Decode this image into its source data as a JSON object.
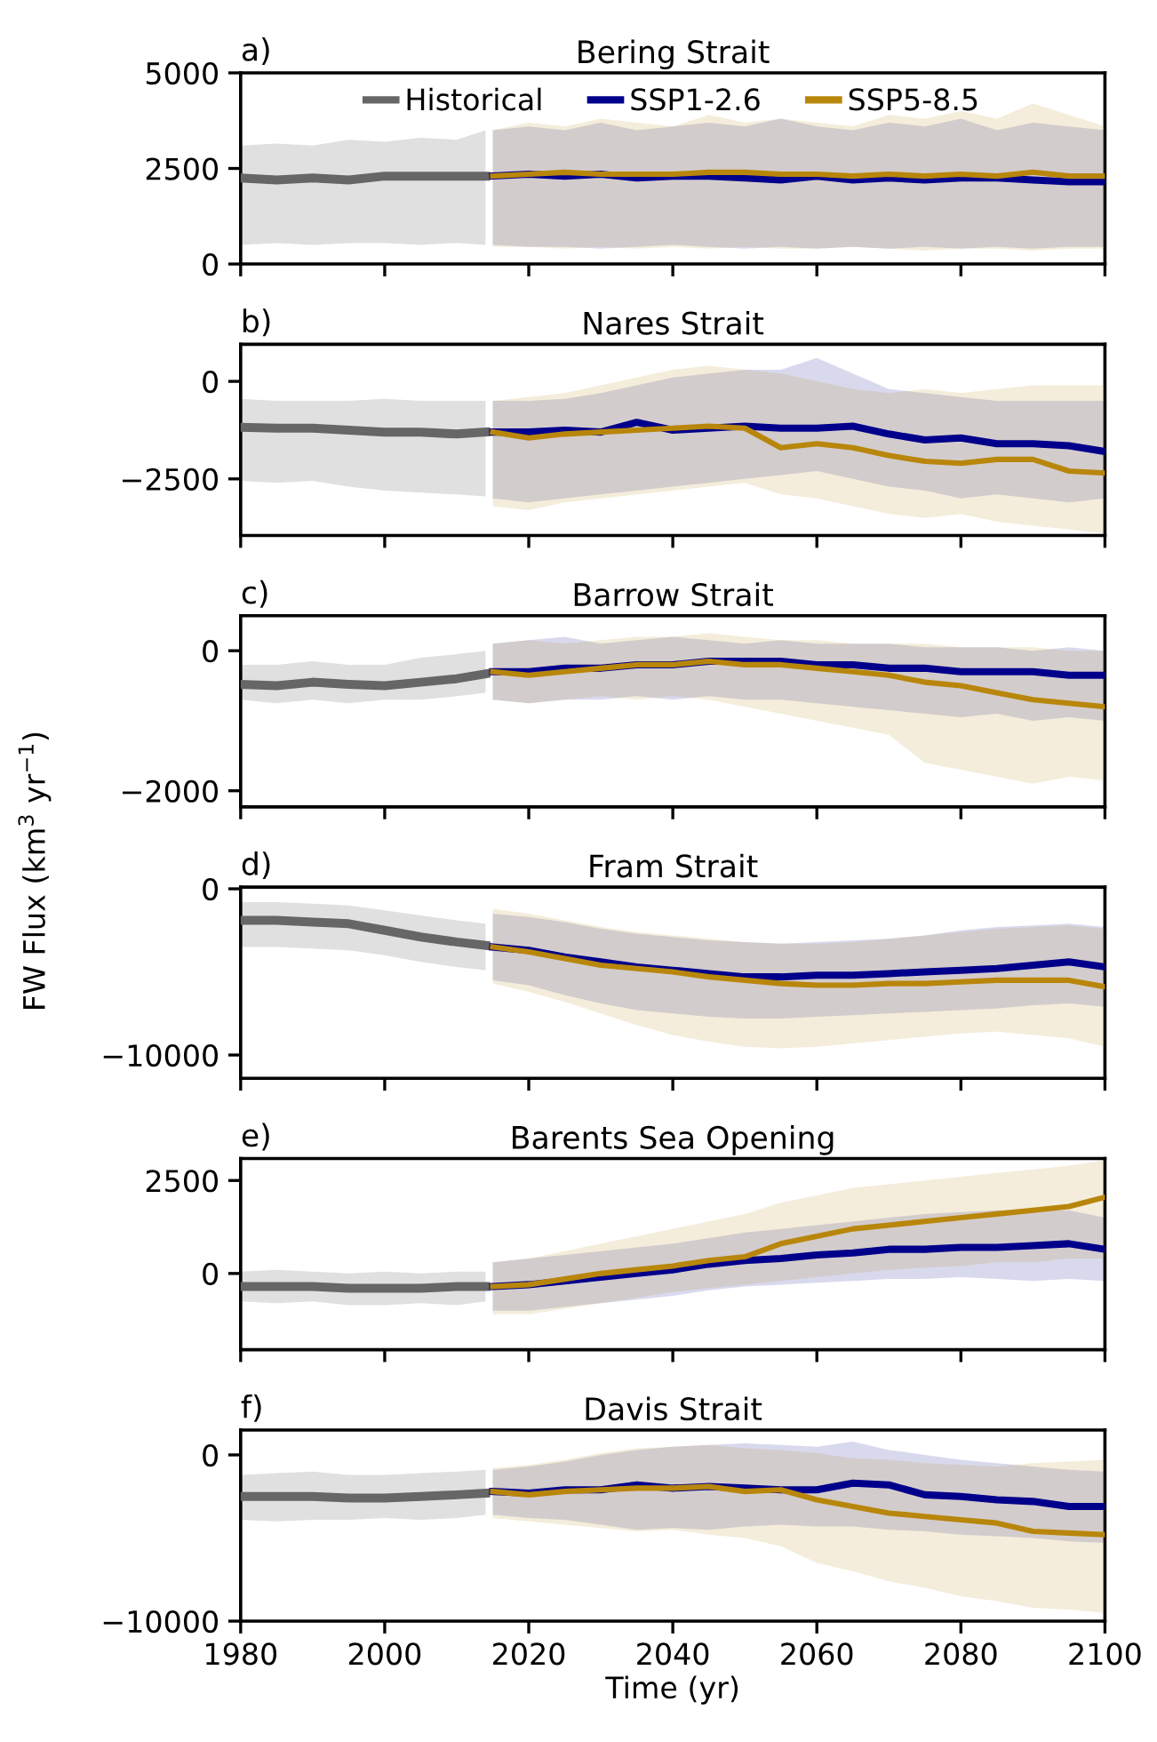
{
  "chart_data": [
    {
      "type": "line",
      "title": "Bering Strait",
      "annotations": [
        "a)"
      ],
      "xlim": [
        1980,
        2100
      ],
      "xticks": [
        1980,
        2000,
        2020,
        2040,
        2060,
        2080,
        2100
      ],
      "ylim": [
        0,
        5000
      ],
      "yticks": [
        0,
        2500,
        5000
      ],
      "tick_labels": "y",
      "legend": "top",
      "grid": false,
      "marker": "none",
      "line_style": "solid",
      "series": [
        {
          "name": "Historical",
          "color": "#666666",
          "x": [
            1980,
            1985,
            1990,
            1995,
            2000,
            2005,
            2010,
            2014
          ],
          "values": [
            2250,
            2200,
            2250,
            2200,
            2300,
            2300,
            2300,
            2300
          ],
          "lower": [
            500,
            550,
            500,
            550,
            550,
            500,
            550,
            500
          ],
          "upper": [
            3100,
            3150,
            3100,
            3250,
            3200,
            3300,
            3250,
            3500
          ]
        },
        {
          "name": "SSP1-2.6",
          "color": "#00008b",
          "x": [
            2015,
            2020,
            2025,
            2030,
            2035,
            2040,
            2045,
            2050,
            2055,
            2060,
            2065,
            2070,
            2075,
            2080,
            2085,
            2090,
            2095,
            2100
          ],
          "values": [
            2300,
            2350,
            2300,
            2350,
            2250,
            2300,
            2300,
            2250,
            2200,
            2300,
            2200,
            2250,
            2200,
            2250,
            2250,
            2200,
            2150,
            2150
          ],
          "lower": [
            500,
            450,
            450,
            400,
            450,
            500,
            450,
            400,
            450,
            400,
            450,
            400,
            450,
            400,
            450,
            400,
            450,
            450
          ],
          "upper": [
            3500,
            3600,
            3500,
            3700,
            3500,
            3600,
            3700,
            3600,
            3800,
            3600,
            3500,
            3700,
            3600,
            3800,
            3500,
            3700,
            3600,
            3500
          ]
        },
        {
          "name": "SSP5-8.5",
          "color": "#b8860b",
          "x": [
            2015,
            2020,
            2025,
            2030,
            2035,
            2040,
            2045,
            2050,
            2055,
            2060,
            2065,
            2070,
            2075,
            2080,
            2085,
            2090,
            2095,
            2100
          ],
          "values": [
            2300,
            2350,
            2400,
            2350,
            2350,
            2350,
            2400,
            2400,
            2350,
            2350,
            2300,
            2350,
            2300,
            2350,
            2300,
            2400,
            2300,
            2300
          ],
          "lower": [
            450,
            450,
            400,
            450,
            400,
            450,
            400,
            450,
            400,
            400,
            450,
            400,
            350,
            400,
            400,
            350,
            400,
            400
          ],
          "upper": [
            3500,
            3700,
            3600,
            3800,
            3700,
            3600,
            3900,
            3700,
            3800,
            3700,
            3600,
            3900,
            3800,
            4000,
            3800,
            4200,
            3900,
            3600
          ]
        }
      ]
    },
    {
      "type": "line",
      "title": "Nares Strait",
      "annotations": [
        "b)"
      ],
      "xlim": [
        1980,
        2100
      ],
      "xticks": [
        1980,
        2000,
        2020,
        2040,
        2060,
        2080,
        2100
      ],
      "ylim": [
        -3950,
        950
      ],
      "yticks": [
        -2500,
        0
      ],
      "tick_labels": "y",
      "grid": false,
      "marker": "none",
      "line_style": "solid",
      "series": [
        {
          "color": "#666666",
          "x": [
            1980,
            1985,
            1990,
            1995,
            2000,
            2005,
            2010,
            2014
          ],
          "values": [
            -1180,
            -1200,
            -1200,
            -1250,
            -1300,
            -1300,
            -1350,
            -1300
          ],
          "lower": [
            -2550,
            -2600,
            -2550,
            -2700,
            -2800,
            -2850,
            -2900,
            -2950
          ],
          "upper": [
            -450,
            -500,
            -500,
            -500,
            -450,
            -500,
            -500,
            -500
          ]
        },
        {
          "color": "#00008b",
          "x": [
            2015,
            2020,
            2025,
            2030,
            2035,
            2040,
            2045,
            2050,
            2055,
            2060,
            2065,
            2070,
            2075,
            2080,
            2085,
            2090,
            2095,
            2100
          ],
          "values": [
            -1300,
            -1300,
            -1250,
            -1300,
            -1050,
            -1250,
            -1200,
            -1150,
            -1200,
            -1200,
            -1150,
            -1350,
            -1500,
            -1450,
            -1600,
            -1600,
            -1650,
            -1800
          ],
          "lower": [
            -3000,
            -3100,
            -3000,
            -2900,
            -2800,
            -2700,
            -2600,
            -2500,
            -2400,
            -2300,
            -2500,
            -2700,
            -2800,
            -3000,
            -2900,
            -3000,
            -3100,
            -3000
          ],
          "upper": [
            -500,
            -500,
            -450,
            -300,
            -100,
            100,
            200,
            300,
            300,
            600,
            200,
            -200,
            -300,
            -400,
            -500,
            -500,
            -500,
            -500
          ]
        },
        {
          "color": "#b8860b",
          "x": [
            2015,
            2020,
            2025,
            2030,
            2035,
            2040,
            2045,
            2050,
            2055,
            2060,
            2065,
            2070,
            2075,
            2080,
            2085,
            2090,
            2095,
            2100
          ],
          "values": [
            -1300,
            -1450,
            -1350,
            -1300,
            -1250,
            -1200,
            -1150,
            -1200,
            -1700,
            -1600,
            -1700,
            -1900,
            -2050,
            -2100,
            -2000,
            -2000,
            -2300,
            -2350
          ],
          "lower": [
            -3200,
            -3300,
            -3100,
            -3000,
            -2900,
            -2800,
            -2700,
            -2600,
            -2900,
            -3000,
            -3200,
            -3400,
            -3500,
            -3400,
            -3600,
            -3700,
            -3800,
            -3900
          ],
          "upper": [
            -500,
            -400,
            -300,
            -100,
            100,
            300,
            400,
            300,
            200,
            0,
            -200,
            -300,
            -200,
            -300,
            -200,
            -100,
            -100,
            -100
          ]
        }
      ]
    },
    {
      "type": "line",
      "title": "Barrow Strait",
      "annotations": [
        "c)"
      ],
      "ylabel": "FW Flux (km$^{3}$ yr$^{−1}$)",
      "xlim": [
        1980,
        2100
      ],
      "xticks": [
        1980,
        2000,
        2020,
        2040,
        2060,
        2080,
        2100
      ],
      "ylim": [
        -2230,
        500
      ],
      "yticks": [
        -2000,
        0
      ],
      "tick_labels": "y",
      "grid": false,
      "marker": "none",
      "line_style": "solid",
      "series": [
        {
          "color": "#666666",
          "x": [
            1980,
            1985,
            1990,
            1995,
            2000,
            2005,
            2010,
            2014
          ],
          "values": [
            -480,
            -500,
            -450,
            -480,
            -500,
            -450,
            -400,
            -330
          ],
          "lower": [
            -700,
            -750,
            -700,
            -750,
            -700,
            -700,
            -650,
            -600
          ],
          "upper": [
            -200,
            -200,
            -150,
            -200,
            -200,
            -100,
            -50,
            0
          ]
        },
        {
          "color": "#00008b",
          "x": [
            2015,
            2020,
            2025,
            2030,
            2035,
            2040,
            2045,
            2050,
            2055,
            2060,
            2065,
            2070,
            2075,
            2080,
            2085,
            2090,
            2095,
            2100
          ],
          "values": [
            -300,
            -300,
            -250,
            -250,
            -200,
            -200,
            -150,
            -150,
            -150,
            -200,
            -200,
            -250,
            -250,
            -300,
            -300,
            -300,
            -350,
            -350
          ],
          "lower": [
            -700,
            -750,
            -700,
            -700,
            -650,
            -700,
            -650,
            -700,
            -700,
            -750,
            -800,
            -850,
            -900,
            -950,
            -900,
            -1000,
            -950,
            -1000
          ],
          "upper": [
            100,
            150,
            200,
            100,
            150,
            200,
            150,
            100,
            150,
            100,
            100,
            100,
            50,
            50,
            50,
            0,
            50,
            0
          ]
        },
        {
          "color": "#b8860b",
          "x": [
            2015,
            2020,
            2025,
            2030,
            2035,
            2040,
            2045,
            2050,
            2055,
            2060,
            2065,
            2070,
            2075,
            2080,
            2085,
            2090,
            2095,
            2100
          ],
          "values": [
            -300,
            -350,
            -300,
            -250,
            -200,
            -200,
            -150,
            -200,
            -200,
            -250,
            -300,
            -350,
            -450,
            -500,
            -600,
            -700,
            -750,
            -800
          ],
          "lower": [
            -700,
            -750,
            -700,
            -650,
            -700,
            -650,
            -700,
            -800,
            -900,
            -1000,
            -1100,
            -1200,
            -1600,
            -1700,
            -1800,
            -1900,
            -1800,
            -1850
          ],
          "upper": [
            100,
            150,
            100,
            150,
            200,
            200,
            250,
            200,
            150,
            150,
            100,
            100,
            100,
            50,
            50,
            50,
            0,
            0
          ]
        }
      ]
    },
    {
      "type": "line",
      "title": "Fram Strait",
      "annotations": [
        "d)"
      ],
      "xlim": [
        1980,
        2100
      ],
      "xticks": [
        1980,
        2000,
        2020,
        2040,
        2060,
        2080,
        2100
      ],
      "ylim": [
        -11400,
        100
      ],
      "yticks": [
        -10000,
        0
      ],
      "tick_labels": "y",
      "grid": false,
      "marker": "none",
      "line_style": "solid",
      "series": [
        {
          "color": "#666666",
          "x": [
            1980,
            1985,
            1990,
            1995,
            2000,
            2005,
            2010,
            2014
          ],
          "values": [
            -1900,
            -1900,
            -2000,
            -2100,
            -2500,
            -2900,
            -3200,
            -3400
          ],
          "lower": [
            -3500,
            -3500,
            -3600,
            -3700,
            -4000,
            -4400,
            -4700,
            -4900
          ],
          "upper": [
            -800,
            -800,
            -900,
            -1000,
            -1300,
            -1600,
            -1900,
            -2100
          ]
        },
        {
          "color": "#00008b",
          "x": [
            2015,
            2020,
            2025,
            2030,
            2035,
            2040,
            2045,
            2050,
            2055,
            2060,
            2065,
            2070,
            2075,
            2080,
            2085,
            2090,
            2095,
            2100
          ],
          "values": [
            -3500,
            -3700,
            -4100,
            -4400,
            -4700,
            -4900,
            -5100,
            -5300,
            -5300,
            -5200,
            -5200,
            -5100,
            -5000,
            -4900,
            -4800,
            -4600,
            -4400,
            -4700
          ],
          "lower": [
            -5500,
            -5800,
            -6400,
            -6900,
            -7300,
            -7500,
            -7700,
            -7800,
            -7800,
            -7700,
            -7600,
            -7500,
            -7400,
            -7300,
            -7200,
            -7000,
            -6900,
            -7100
          ],
          "upper": [
            -1500,
            -1700,
            -2000,
            -2400,
            -2700,
            -2900,
            -3100,
            -3200,
            -3300,
            -3200,
            -3100,
            -3000,
            -2800,
            -2500,
            -2300,
            -2200,
            -2100,
            -2300
          ]
        },
        {
          "color": "#b8860b",
          "x": [
            2015,
            2020,
            2025,
            2030,
            2035,
            2040,
            2045,
            2050,
            2055,
            2060,
            2065,
            2070,
            2075,
            2080,
            2085,
            2090,
            2095,
            2100
          ],
          "values": [
            -3500,
            -3800,
            -4200,
            -4600,
            -4800,
            -5000,
            -5300,
            -5500,
            -5700,
            -5800,
            -5800,
            -5700,
            -5700,
            -5600,
            -5500,
            -5500,
            -5500,
            -5900
          ],
          "lower": [
            -5700,
            -6200,
            -6800,
            -7500,
            -8200,
            -8800,
            -9200,
            -9500,
            -9600,
            -9500,
            -9300,
            -9100,
            -8900,
            -8700,
            -8600,
            -8800,
            -9000,
            -9500
          ],
          "upper": [
            -1200,
            -1500,
            -1900,
            -2300,
            -2600,
            -2800,
            -3000,
            -3200,
            -3300,
            -3300,
            -3200,
            -3000,
            -2800,
            -2600,
            -2400,
            -2300,
            -2200,
            -2400
          ]
        }
      ]
    },
    {
      "type": "line",
      "title": "Barents Sea Opening",
      "annotations": [
        "e)"
      ],
      "xlim": [
        1980,
        2100
      ],
      "xticks": [
        1980,
        2000,
        2020,
        2040,
        2060,
        2080,
        2100
      ],
      "ylim": [
        -2050,
        3090
      ],
      "yticks": [
        0,
        2500
      ],
      "tick_labels": "y",
      "grid": false,
      "marker": "none",
      "line_style": "solid",
      "series": [
        {
          "color": "#666666",
          "x": [
            1980,
            1985,
            1990,
            1995,
            2000,
            2005,
            2010,
            2014
          ],
          "values": [
            -350,
            -350,
            -350,
            -400,
            -400,
            -400,
            -350,
            -350
          ],
          "lower": [
            -750,
            -800,
            -750,
            -850,
            -850,
            -800,
            -850,
            -750
          ],
          "upper": [
            50,
            100,
            50,
            0,
            50,
            0,
            50,
            50
          ]
        },
        {
          "color": "#00008b",
          "x": [
            2015,
            2020,
            2025,
            2030,
            2035,
            2040,
            2045,
            2050,
            2055,
            2060,
            2065,
            2070,
            2075,
            2080,
            2085,
            2090,
            2095,
            2100
          ],
          "values": [
            -350,
            -300,
            -200,
            -100,
            0,
            100,
            250,
            350,
            400,
            500,
            550,
            650,
            650,
            700,
            700,
            750,
            800,
            650
          ],
          "lower": [
            -1000,
            -1000,
            -900,
            -800,
            -700,
            -600,
            -450,
            -350,
            -300,
            -250,
            -200,
            -150,
            -150,
            -100,
            -150,
            -200,
            -150,
            -200
          ],
          "upper": [
            300,
            400,
            500,
            600,
            700,
            800,
            950,
            1100,
            1200,
            1300,
            1400,
            1500,
            1600,
            1650,
            1700,
            1700,
            1700,
            1500
          ]
        },
        {
          "color": "#b8860b",
          "x": [
            2015,
            2020,
            2025,
            2030,
            2035,
            2040,
            2045,
            2050,
            2055,
            2060,
            2065,
            2070,
            2075,
            2080,
            2085,
            2090,
            2095,
            2100
          ],
          "values": [
            -350,
            -300,
            -150,
            0,
            100,
            200,
            350,
            450,
            800,
            1000,
            1200,
            1300,
            1400,
            1500,
            1600,
            1700,
            1800,
            2050
          ],
          "lower": [
            -1100,
            -1100,
            -950,
            -800,
            -650,
            -500,
            -400,
            -300,
            -200,
            -100,
            0,
            100,
            150,
            200,
            300,
            300,
            400,
            400
          ],
          "upper": [
            300,
            400,
            600,
            800,
            1000,
            1200,
            1400,
            1600,
            1900,
            2100,
            2300,
            2400,
            2500,
            2600,
            2700,
            2800,
            2900,
            3050
          ]
        }
      ]
    },
    {
      "type": "line",
      "title": "Davis Strait",
      "annotations": [
        "f)"
      ],
      "xlabel": "Time (yr)",
      "xlim": [
        1980,
        2100
      ],
      "xticks": [
        1980,
        2000,
        2020,
        2040,
        2060,
        2080,
        2100
      ],
      "ylim": [
        -10000,
        1500
      ],
      "yticks": [
        -10000,
        0
      ],
      "grid": false,
      "marker": "none",
      "line_style": "solid",
      "series": [
        {
          "color": "#666666",
          "x": [
            1980,
            1985,
            1990,
            1995,
            2000,
            2005,
            2010,
            2014
          ],
          "values": [
            -2500,
            -2500,
            -2500,
            -2600,
            -2600,
            -2500,
            -2400,
            -2300
          ],
          "lower": [
            -3900,
            -4000,
            -3900,
            -3900,
            -3800,
            -3900,
            -3800,
            -3600
          ],
          "upper": [
            -1200,
            -1100,
            -1000,
            -1200,
            -1200,
            -1100,
            -1000,
            -900
          ]
        },
        {
          "color": "#00008b",
          "x": [
            2015,
            2020,
            2025,
            2030,
            2035,
            2040,
            2045,
            2050,
            2055,
            2060,
            2065,
            2070,
            2075,
            2080,
            2085,
            2090,
            2095,
            2100
          ],
          "values": [
            -2200,
            -2300,
            -2100,
            -2100,
            -1800,
            -2000,
            -1900,
            -2000,
            -2100,
            -2100,
            -1700,
            -1800,
            -2400,
            -2500,
            -2700,
            -2800,
            -3100,
            -3100
          ],
          "lower": [
            -3600,
            -3800,
            -3900,
            -4200,
            -4500,
            -4400,
            -4500,
            -4300,
            -4200,
            -4300,
            -4300,
            -4500,
            -4600,
            -4800,
            -4900,
            -5000,
            -5200,
            -5300
          ],
          "upper": [
            -900,
            -700,
            -400,
            0,
            300,
            500,
            600,
            700,
            600,
            500,
            800,
            300,
            0,
            -300,
            -500,
            -700,
            -900,
            -1000
          ]
        },
        {
          "color": "#b8860b",
          "x": [
            2015,
            2020,
            2025,
            2030,
            2035,
            2040,
            2045,
            2050,
            2055,
            2060,
            2065,
            2070,
            2075,
            2080,
            2085,
            2090,
            2095,
            2100
          ],
          "values": [
            -2200,
            -2400,
            -2200,
            -2100,
            -2000,
            -2000,
            -1900,
            -2200,
            -2100,
            -2700,
            -3100,
            -3500,
            -3700,
            -3900,
            -4100,
            -4600,
            -4700,
            -4800
          ],
          "lower": [
            -3800,
            -4000,
            -4200,
            -4400,
            -4600,
            -4500,
            -4800,
            -5000,
            -5500,
            -6500,
            -7000,
            -7600,
            -8000,
            -8500,
            -8800,
            -9200,
            -9300,
            -9500
          ],
          "upper": [
            -800,
            -600,
            -300,
            100,
            400,
            500,
            600,
            400,
            300,
            100,
            -200,
            -300,
            -500,
            -600,
            -700,
            -500,
            -400,
            -300
          ]
        }
      ]
    }
  ]
}
